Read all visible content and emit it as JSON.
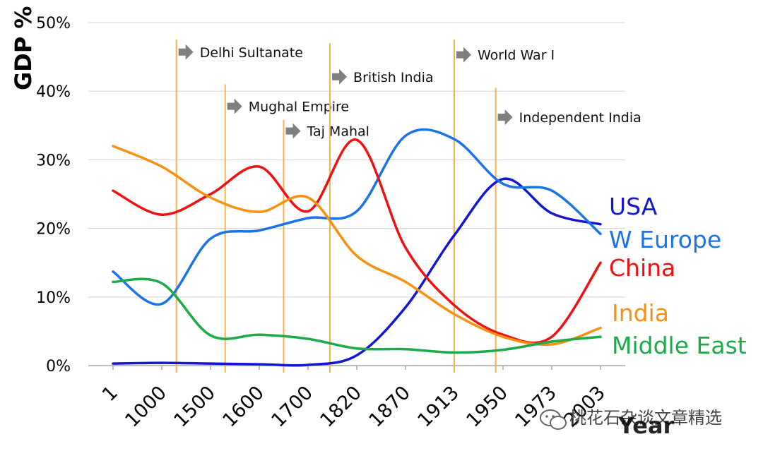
{
  "chart_data": {
    "type": "line",
    "xlabel": "Year",
    "ylabel": "GDP %",
    "categories": [
      "1",
      "1000",
      "1500",
      "1600",
      "1700",
      "1820",
      "1870",
      "1913",
      "1950",
      "1973",
      "2003"
    ],
    "x_ticks": [
      "1",
      "1000",
      "1500",
      "1600",
      "1700",
      "1820",
      "1870",
      "1913",
      "1950",
      "1973",
      "2003"
    ],
    "y_ticks": [
      "0%",
      "10%",
      "20%",
      "30%",
      "40%",
      "50%"
    ],
    "ylim": [
      0,
      50
    ],
    "grid": "horizontal",
    "legend_placement": "right",
    "series": [
      {
        "name": "USA",
        "color": "#1515d4",
        "points": [
          [
            0,
            0.3
          ],
          [
            1,
            0.4
          ],
          [
            2,
            0.3
          ],
          [
            3,
            0.2
          ],
          [
            4,
            0.1
          ],
          [
            5,
            1.5
          ],
          [
            6,
            8.5
          ],
          [
            7,
            19
          ],
          [
            8,
            27.2
          ],
          [
            9,
            22.2
          ],
          [
            10,
            20.6
          ]
        ]
      },
      {
        "name": "W Europe",
        "color": "#1a73e8",
        "points": [
          [
            0,
            13.7
          ],
          [
            1,
            9.0
          ],
          [
            2,
            18.5
          ],
          [
            3,
            19.7
          ],
          [
            4,
            21.5
          ],
          [
            5,
            22.5
          ],
          [
            6,
            33.5
          ],
          [
            7,
            33.0
          ],
          [
            8,
            26.5
          ],
          [
            9,
            25.5
          ],
          [
            10,
            19.2
          ]
        ]
      },
      {
        "name": "China",
        "color": "#ee1111",
        "points": [
          [
            0,
            25.5
          ],
          [
            1,
            22.0
          ],
          [
            2,
            25.0
          ],
          [
            3,
            29.0
          ],
          [
            4,
            22.5
          ],
          [
            5,
            32.9
          ],
          [
            6,
            17.2
          ],
          [
            7,
            8.8
          ],
          [
            8,
            4.5
          ],
          [
            9,
            4.2
          ],
          [
            10,
            15.0
          ]
        ]
      },
      {
        "name": "India",
        "color": "#f7910f",
        "points": [
          [
            0,
            32.0
          ],
          [
            1,
            29.0
          ],
          [
            2,
            24.5
          ],
          [
            3,
            22.4
          ],
          [
            4,
            24.5
          ],
          [
            5,
            16.0
          ],
          [
            6,
            12.2
          ],
          [
            7,
            7.5
          ],
          [
            8,
            4.2
          ],
          [
            9,
            3.1
          ],
          [
            10,
            5.5
          ]
        ]
      },
      {
        "name": "Middle East",
        "color": "#1bab48",
        "points": [
          [
            0,
            12.2
          ],
          [
            1,
            12.0
          ],
          [
            2,
            4.4
          ],
          [
            3,
            4.5
          ],
          [
            4,
            3.9
          ],
          [
            5,
            2.5
          ],
          [
            6,
            2.4
          ],
          [
            7,
            1.9
          ],
          [
            8,
            2.3
          ],
          [
            9,
            3.5
          ],
          [
            10,
            4.2
          ]
        ]
      }
    ],
    "events": [
      {
        "label": "Delhi Sultanate",
        "x": 1.3,
        "top": 47.5,
        "label_y": 45.7
      },
      {
        "label": "Mughal Empire",
        "x": 2.3,
        "top": 41.0,
        "label_y": 37.8
      },
      {
        "label": "Taj Mahal",
        "x": 3.5,
        "top": 35.8,
        "label_y": 34.2
      },
      {
        "label": "British India",
        "x": 4.45,
        "top": 47.0,
        "label_y": 42.1
      },
      {
        "label": "World War I",
        "x": 7.0,
        "top": 47.5,
        "label_y": 45.3
      },
      {
        "label": "Independent India",
        "x": 7.85,
        "top": 40.5,
        "label_y": 36.2
      }
    ],
    "event_line_color": "#f8b04a",
    "arrow_color": "#7f7f7f"
  },
  "watermark": "桃花石杂谈文章精选"
}
